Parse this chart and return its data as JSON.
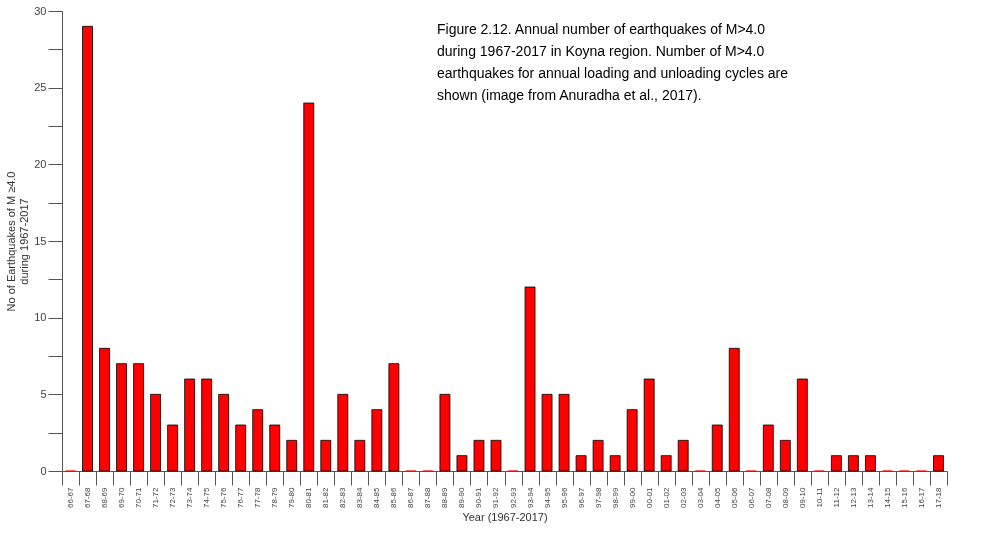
{
  "chart_data": {
    "type": "bar",
    "xlabel": "Year (1967-2017)",
    "ylabel": "No of Earthquakes of M ≥4.0\nduring 1967-2017",
    "categories": [
      "66-67",
      "67-68",
      "68-69",
      "69-70",
      "70-71",
      "71-72",
      "72-73",
      "73-74",
      "74-75",
      "75-76",
      "76-77",
      "77-78",
      "78-79",
      "79-80",
      "80-81",
      "81-82",
      "82-83",
      "83-84",
      "84-85",
      "85-86",
      "86-87",
      "87-88",
      "88-89",
      "89-90",
      "90-91",
      "91-92",
      "92-93",
      "93-94",
      "94-95",
      "95-96",
      "96-97",
      "97-98",
      "98-99",
      "99-00",
      "00-01",
      "01-02",
      "02-03",
      "03-04",
      "04-05",
      "05-06",
      "06-07",
      "07-08",
      "08-09",
      "09-10",
      "10-11",
      "11-12",
      "12-13",
      "13-14",
      "14-15",
      "15-16",
      "16-17",
      "17-18"
    ],
    "values": [
      0,
      29,
      8,
      7,
      7,
      5,
      3,
      6,
      6,
      5,
      3,
      4,
      3,
      2,
      24,
      2,
      5,
      2,
      4,
      7,
      0,
      0,
      5,
      1,
      2,
      2,
      0,
      12,
      5,
      5,
      1,
      2,
      1,
      4,
      6,
      1,
      2,
      0,
      3,
      8,
      0,
      3,
      2,
      6,
      0,
      1,
      1,
      1,
      0,
      0,
      0,
      1
    ],
    "color": "#ff0000",
    "ylim": [
      0,
      30
    ],
    "yticks": [
      0,
      {
        "value": 2.5,
        "label": null
      },
      5,
      {
        "value": 7.5,
        "label": null
      },
      10,
      {
        "value": 12.5,
        "label": null
      },
      15,
      {
        "value": 17.5,
        "label": null
      },
      20,
      {
        "value": 22.5,
        "label": null
      },
      25,
      {
        "value": 27.5,
        "label": null
      },
      30
    ],
    "grid": false,
    "annotations": [
      "Figure 2.12. Annual number of earthquakes of M>4.0 during 1967-2017 in Koyna region. Number of M>4.0 earthquakes for annual loading and unloading cycles are shown (image from Anuradha et al., 2017)."
    ]
  }
}
